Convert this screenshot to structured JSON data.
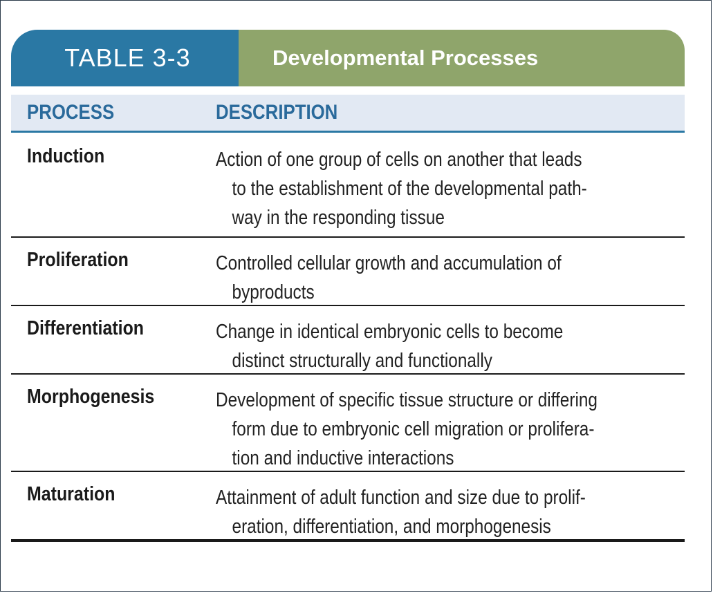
{
  "table": {
    "number": "TABLE 3-3",
    "title": "Developmental Processes",
    "headers": {
      "process": "PROCESS",
      "description": "DESCRIPTION"
    },
    "rows": [
      {
        "process": "Induction",
        "description_lines": [
          "Action of one group of cells on another that leads",
          "to the establishment of the developmental path-",
          "way in the responding tissue"
        ]
      },
      {
        "process": "Proliferation",
        "description_lines": [
          "Controlled cellular growth and accumulation of",
          "byproducts"
        ]
      },
      {
        "process": "Differentiation",
        "description_lines": [
          "Change in identical embryonic cells to become",
          "distinct structurally and functionally"
        ]
      },
      {
        "process": "Morphogenesis",
        "description_lines": [
          "Development of specific tissue structure or differing",
          "form due to embryonic cell migration or prolifera-",
          "tion and inductive interactions"
        ]
      },
      {
        "process": "Maturation",
        "description_lines": [
          "Attainment of adult function and size due to prolif-",
          "eration, differentiation, and morphogenesis"
        ]
      }
    ]
  },
  "colors": {
    "banner_blue": "#2a78a4",
    "banner_green": "#8fa56b",
    "header_bg": "#e2e9f3",
    "header_text": "#2a6a9b"
  }
}
